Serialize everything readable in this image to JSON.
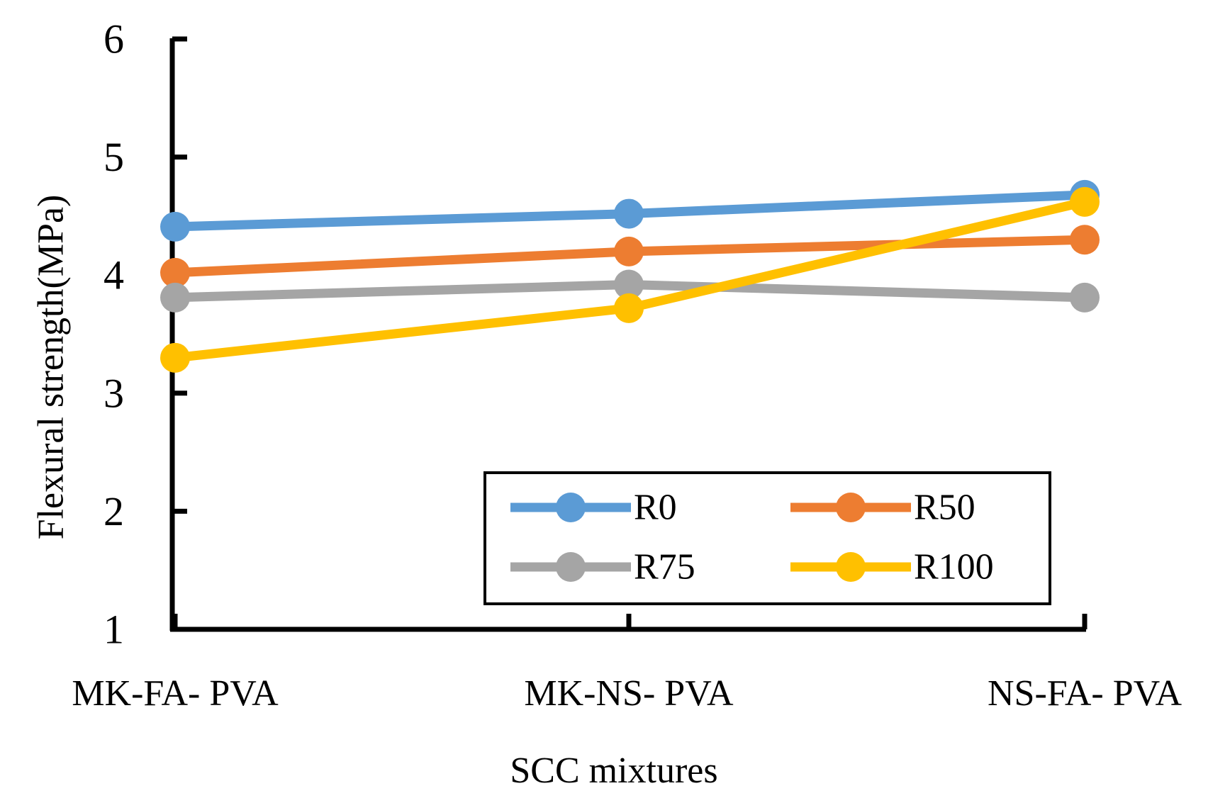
{
  "chart_data": {
    "type": "line",
    "title": "",
    "xlabel": "SCC mixtures",
    "ylabel": "Flexural strength(MPa)",
    "ylim": [
      1,
      6
    ],
    "yticks": [
      "1",
      "2",
      "3",
      "4",
      "5",
      "6"
    ],
    "categories": [
      "MK-FA- PVA",
      "MK-NS- PVA",
      "NS-FA- PVA"
    ],
    "grid": false,
    "legend_position": "bottom-right",
    "series": [
      {
        "name": "R0",
        "color": "#5b9bd5",
        "values": [
          4.41,
          4.52,
          4.68
        ]
      },
      {
        "name": "R50",
        "color": "#ed7d31",
        "values": [
          4.02,
          4.2,
          4.3
        ]
      },
      {
        "name": "R75",
        "color": "#a5a5a5",
        "values": [
          3.81,
          3.92,
          3.81
        ]
      },
      {
        "name": "R100",
        "color": "#ffc000",
        "values": [
          3.3,
          3.72,
          4.62
        ]
      }
    ]
  }
}
